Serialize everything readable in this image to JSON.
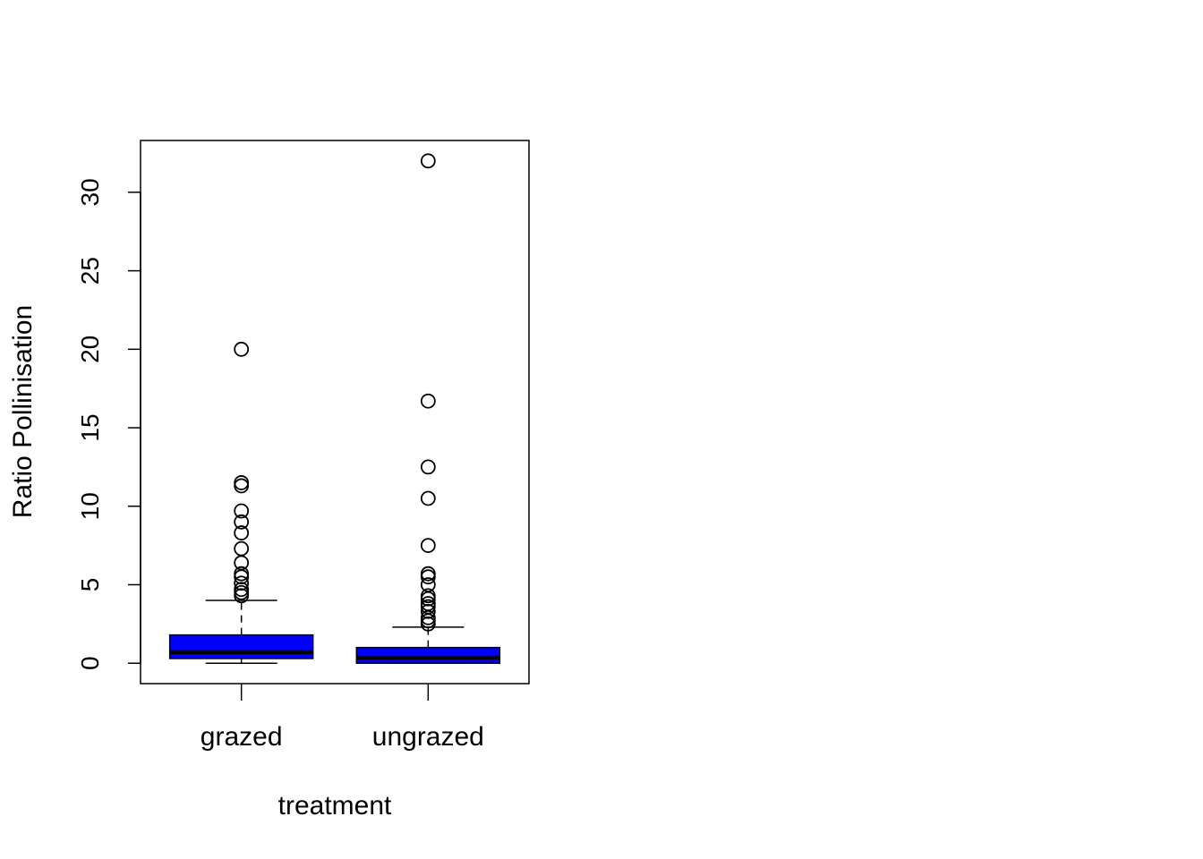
{
  "chart_data": {
    "type": "boxplot",
    "title": "",
    "xlabel": "treatment",
    "ylabel": "Ratio Pollinisation",
    "ylim": [
      -1.3,
      33.3
    ],
    "yticks": [
      0,
      5,
      10,
      15,
      20,
      25,
      30
    ],
    "grid": false,
    "legend": "none",
    "box_color": "#0000ff",
    "categories": [
      "grazed",
      "ungrazed"
    ],
    "boxes": [
      {
        "name": "grazed",
        "whisker_low": 0.0,
        "q1": 0.3,
        "median": 0.7,
        "q3": 1.8,
        "whisker_high": 4.0,
        "outliers": [
          4.3,
          4.5,
          4.7,
          5.1,
          5.5,
          5.7,
          6.4,
          7.3,
          8.3,
          9.0,
          9.7,
          11.3,
          11.5,
          20.0
        ]
      },
      {
        "name": "ungrazed",
        "whisker_low": 0.0,
        "q1": 0.0,
        "median": 0.35,
        "q3": 1.0,
        "whisker_high": 2.3,
        "outliers": [
          2.5,
          2.7,
          2.9,
          3.3,
          3.6,
          3.8,
          4.1,
          4.3,
          5.0,
          5.5,
          5.7,
          7.5,
          10.5,
          12.5,
          16.7,
          32.0
        ]
      }
    ]
  }
}
